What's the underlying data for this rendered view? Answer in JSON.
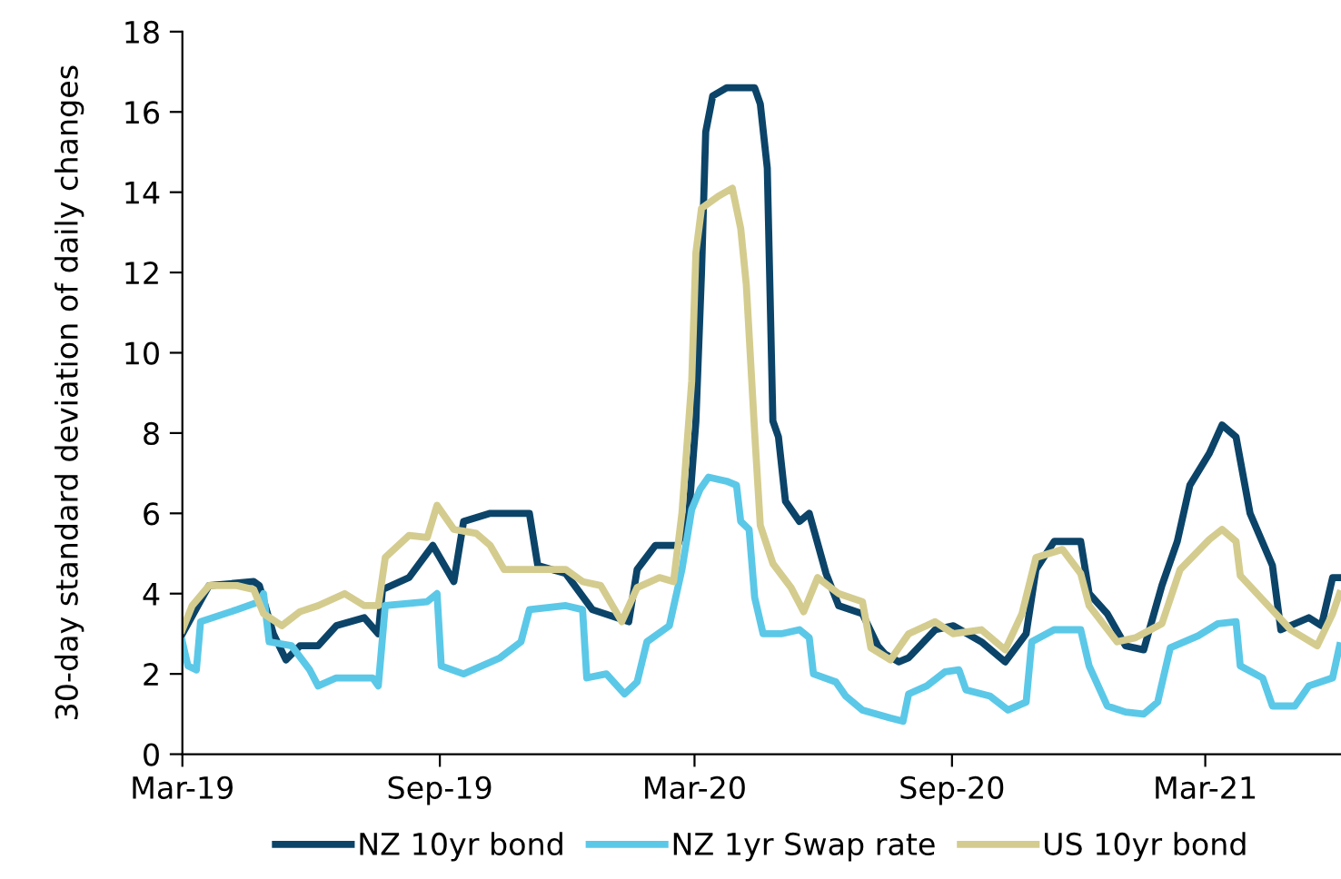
{
  "chart_data": {
    "type": "line",
    "ylabel": "30-day standard deviation of daily changes",
    "xlim": [
      "2019-03-01",
      "2021-06-06"
    ],
    "xticks": [
      {
        "value": "2019-03-01",
        "label": "Mar-19"
      },
      {
        "value": "2019-09-01",
        "label": "Sep-19"
      },
      {
        "value": "2020-03-01",
        "label": "Mar-20"
      },
      {
        "value": "2020-09-01",
        "label": "Sep-20"
      },
      {
        "value": "2021-03-01",
        "label": "Mar-21"
      }
    ],
    "ylim": [
      0,
      18
    ],
    "yticks": [
      0,
      2,
      4,
      6,
      8,
      10,
      12,
      14,
      16,
      18
    ],
    "grid": false,
    "legend": "bottom",
    "marker": "none",
    "line_style": "solid",
    "series": [
      {
        "name": "NZ 10yr bond",
        "color": "#0b4468",
        "x": [
          "2019-03-01",
          "2019-03-20",
          "2019-04-21",
          "2019-04-25",
          "2019-05-05",
          "2019-05-14",
          "2019-05-24",
          "2019-06-06",
          "2019-06-19",
          "2019-07-09",
          "2019-07-19",
          "2019-07-22",
          "2019-08-10",
          "2019-08-27",
          "2019-09-11",
          "2019-09-18",
          "2019-10-07",
          "2019-10-27",
          "2019-11-04",
          "2019-11-10",
          "2019-11-30",
          "2019-12-19",
          "2020-01-14",
          "2020-01-20",
          "2020-02-02",
          "2020-02-18",
          "2020-02-26",
          "2020-03-02",
          "2020-03-06",
          "2020-03-09",
          "2020-03-14",
          "2020-03-24",
          "2020-04-13",
          "2020-04-17",
          "2020-04-22",
          "2020-04-26",
          "2020-04-30",
          "2020-05-05",
          "2020-05-15",
          "2020-05-22",
          "2020-06-03",
          "2020-06-12",
          "2020-06-29",
          "2020-07-10",
          "2020-07-15",
          "2020-07-25",
          "2020-08-01",
          "2020-08-20",
          "2020-09-02",
          "2020-09-22",
          "2020-10-09",
          "2020-10-24",
          "2020-10-31",
          "2020-11-13",
          "2020-12-02",
          "2020-12-08",
          "2020-12-21",
          "2021-01-03",
          "2021-01-16",
          "2021-01-29",
          "2021-02-09",
          "2021-02-18",
          "2021-03-04",
          "2021-03-13",
          "2021-03-23",
          "2021-04-02",
          "2021-04-18",
          "2021-04-24",
          "2021-05-14",
          "2021-05-23",
          "2021-05-31",
          "2021-06-05"
        ],
        "values": [
          3.0,
          4.2,
          4.3,
          4.2,
          3.0,
          2.35,
          2.7,
          2.7,
          3.2,
          3.4,
          3.0,
          4.1,
          4.4,
          5.2,
          4.3,
          5.8,
          6.0,
          6.0,
          6.0,
          4.7,
          4.5,
          3.6,
          3.3,
          4.6,
          5.2,
          5.2,
          6.0,
          8.3,
          12,
          15.5,
          16.4,
          16.6,
          16.6,
          16.2,
          14.6,
          8.3,
          7.9,
          6.3,
          5.8,
          6.0,
          4.5,
          3.7,
          3.5,
          2.7,
          2.5,
          2.3,
          2.4,
          3.1,
          3.2,
          2.8,
          2.3,
          3.0,
          4.6,
          5.3,
          5.3,
          4.0,
          3.5,
          2.7,
          2.6,
          4.2,
          5.3,
          6.7,
          7.5,
          8.2,
          7.9,
          6.0,
          4.7,
          3.1,
          3.4,
          3.2,
          4.4,
          4.4
        ]
      },
      {
        "name": "NZ 1yr Swap rate",
        "color": "#5bc8e8",
        "x": [
          "2019-03-01",
          "2019-03-05",
          "2019-03-11",
          "2019-03-14",
          "2019-04-09",
          "2019-04-25",
          "2019-04-28",
          "2019-05-02",
          "2019-05-18",
          "2019-05-31",
          "2019-06-06",
          "2019-06-19",
          "2019-07-15",
          "2019-07-19",
          "2019-07-24",
          "2019-08-23",
          "2019-08-30",
          "2019-09-02",
          "2019-09-18",
          "2019-10-14",
          "2019-10-29",
          "2019-11-04",
          "2019-11-30",
          "2019-12-12",
          "2019-12-15",
          "2019-12-29",
          "2020-01-11",
          "2020-01-20",
          "2020-01-27",
          "2020-02-12",
          "2020-02-21",
          "2020-02-28",
          "2020-03-05",
          "2020-03-11",
          "2020-03-24",
          "2020-03-31",
          "2020-04-03",
          "2020-04-09",
          "2020-04-13",
          "2020-04-19",
          "2020-05-02",
          "2020-05-15",
          "2020-05-22",
          "2020-05-25",
          "2020-06-10",
          "2020-06-17",
          "2020-06-29",
          "2020-07-19",
          "2020-07-28",
          "2020-08-01",
          "2020-08-14",
          "2020-08-27",
          "2020-09-06",
          "2020-09-11",
          "2020-09-28",
          "2020-10-11",
          "2020-10-24",
          "2020-10-28",
          "2020-11-13",
          "2020-12-02",
          "2020-12-08",
          "2020-12-21",
          "2021-01-03",
          "2021-01-16",
          "2021-01-26",
          "2021-02-04",
          "2021-02-24",
          "2021-03-10",
          "2021-03-23",
          "2021-03-26",
          "2021-04-11",
          "2021-04-18",
          "2021-05-04",
          "2021-05-14",
          "2021-05-31",
          "2021-06-05"
        ],
        "values": [
          2.8,
          2.2,
          2.1,
          3.3,
          3.6,
          3.8,
          4.0,
          2.8,
          2.7,
          2.1,
          1.7,
          1.9,
          1.9,
          1.7,
          3.7,
          3.8,
          4.0,
          2.2,
          2.0,
          2.4,
          2.8,
          3.6,
          3.7,
          3.6,
          1.9,
          2.0,
          1.5,
          1.8,
          2.8,
          3.2,
          4.6,
          6.1,
          6.6,
          6.9,
          6.8,
          6.7,
          5.8,
          5.6,
          3.9,
          3.0,
          3.0,
          3.1,
          2.9,
          2.0,
          1.8,
          1.45,
          1.1,
          0.9,
          0.82,
          1.5,
          1.7,
          2.05,
          2.1,
          1.6,
          1.45,
          1.1,
          1.3,
          2.8,
          3.1,
          3.1,
          2.2,
          1.2,
          1.05,
          1.0,
          1.3,
          2.65,
          2.95,
          3.25,
          3.3,
          2.2,
          1.9,
          1.2,
          1.2,
          1.7,
          1.9,
          2.7
        ]
      },
      {
        "name": "US 10yr bond",
        "color": "#d4cc8e",
        "x": [
          "2019-03-01",
          "2019-03-08",
          "2019-03-20",
          "2019-04-09",
          "2019-04-21",
          "2019-04-28",
          "2019-05-11",
          "2019-05-24",
          "2019-06-06",
          "2019-06-25",
          "2019-07-09",
          "2019-07-19",
          "2019-07-24",
          "2019-08-10",
          "2019-08-23",
          "2019-08-30",
          "2019-09-11",
          "2019-09-27",
          "2019-10-07",
          "2019-10-17",
          "2019-11-04",
          "2019-11-30",
          "2019-12-12",
          "2019-12-25",
          "2020-01-09",
          "2020-01-20",
          "2020-02-05",
          "2020-02-15",
          "2020-02-21",
          "2020-02-28",
          "2020-03-02",
          "2020-03-06",
          "2020-03-18",
          "2020-03-28",
          "2020-04-03",
          "2020-04-07",
          "2020-04-13",
          "2020-04-17",
          "2020-04-26",
          "2020-05-09",
          "2020-05-18",
          "2020-05-28",
          "2020-06-12",
          "2020-06-29",
          "2020-07-05",
          "2020-07-19",
          "2020-08-01",
          "2020-08-20",
          "2020-09-02",
          "2020-09-22",
          "2020-10-09",
          "2020-10-21",
          "2020-10-31",
          "2020-11-19",
          "2020-12-02",
          "2020-12-08",
          "2020-12-28",
          "2021-01-10",
          "2021-01-29",
          "2021-02-11",
          "2021-03-04",
          "2021-03-13",
          "2021-03-23",
          "2021-03-26",
          "2021-04-11",
          "2021-05-01",
          "2021-05-20",
          "2021-05-31",
          "2021-06-05"
        ],
        "values": [
          3.1,
          3.7,
          4.2,
          4.2,
          4.1,
          3.5,
          3.2,
          3.55,
          3.7,
          4.0,
          3.7,
          3.7,
          4.9,
          5.45,
          5.4,
          6.2,
          5.6,
          5.5,
          5.2,
          4.6,
          4.6,
          4.6,
          4.3,
          4.2,
          3.3,
          4.15,
          4.4,
          4.3,
          6.0,
          9.3,
          12.5,
          13.6,
          13.9,
          14.1,
          13.1,
          11.7,
          8.0,
          5.7,
          4.75,
          4.15,
          3.55,
          4.4,
          4.0,
          3.8,
          2.65,
          2.35,
          3.0,
          3.3,
          3.0,
          3.1,
          2.6,
          3.5,
          4.9,
          5.1,
          4.5,
          3.7,
          2.8,
          2.9,
          3.25,
          4.6,
          5.35,
          5.6,
          5.3,
          4.45,
          3.85,
          3.1,
          2.7,
          3.5,
          4.0
        ]
      }
    ]
  }
}
